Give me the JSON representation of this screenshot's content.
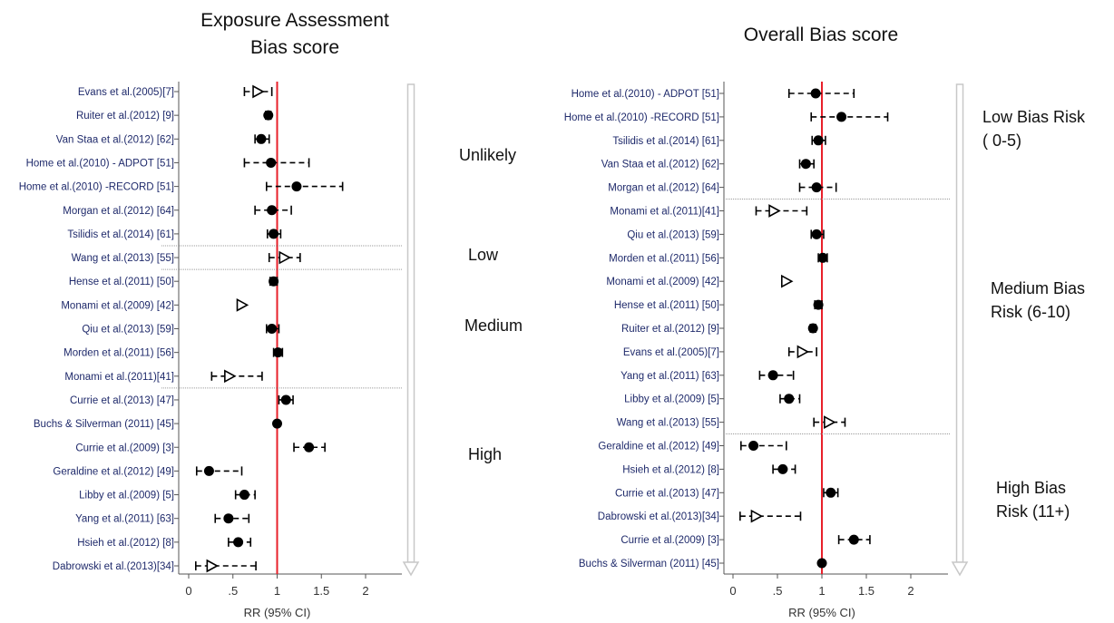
{
  "colors": {
    "reference_line": "#e8202a",
    "marker": "#000000",
    "axis": "#555555",
    "label": "#1f2a6b",
    "arrow": "#c8c8c8",
    "divider": "#9a9a9a"
  },
  "chart_data": [
    {
      "type": "forest",
      "title_lines": [
        "Exposure Assessment",
        "Bias score"
      ],
      "xlabel": "RR (95% CI)",
      "xlim": [
        0,
        2
      ],
      "x_ticks": [
        {
          "value": 0,
          "label": "0"
        },
        {
          "value": 0.5,
          "label": ".5"
        },
        {
          "value": 1,
          "label": "1"
        },
        {
          "value": 1.5,
          "label": "1.5"
        },
        {
          "value": 2,
          "label": "2"
        }
      ],
      "reference_line": 1,
      "group_breaks_after": [
        7,
        8,
        13
      ],
      "groups": [
        {
          "label": "Unlikely",
          "rows": [
            0,
            6
          ]
        },
        {
          "label": "Low",
          "rows": [
            7,
            7
          ]
        },
        {
          "label": "Medium",
          "rows": [
            8,
            12
          ]
        },
        {
          "label": "High",
          "rows": [
            13,
            20
          ]
        }
      ],
      "studies": [
        {
          "label": "Evans et al.(2005)[7]",
          "rr": 0.78,
          "lo": 0.63,
          "hi": 0.94,
          "marker": "triangle"
        },
        {
          "label": "Ruiter et al.(2012) [9]",
          "rr": 0.9,
          "lo": 0.87,
          "hi": 0.93,
          "marker": "circle"
        },
        {
          "label": "Van Staa et al.(2012) [62]",
          "rr": 0.82,
          "lo": 0.75,
          "hi": 0.91,
          "marker": "circle"
        },
        {
          "label": "Home et al.(2010) - ADPOT [51]",
          "rr": 0.93,
          "lo": 0.63,
          "hi": 1.36,
          "marker": "circle"
        },
        {
          "label": "Home et al.(2010) -RECORD [51]",
          "rr": 1.22,
          "lo": 0.88,
          "hi": 1.74,
          "marker": "circle"
        },
        {
          "label": "Morgan et al.(2012) [64]",
          "rr": 0.94,
          "lo": 0.75,
          "hi": 1.16,
          "marker": "circle"
        },
        {
          "label": "Tsilidis et al.(2014) [61]",
          "rr": 0.96,
          "lo": 0.89,
          "hi": 1.04,
          "marker": "circle"
        },
        {
          "label": "Wang et al.(2013) [55]",
          "rr": 1.08,
          "lo": 0.91,
          "hi": 1.26,
          "marker": "triangle"
        },
        {
          "label": "Hense et al.(2011) [50]",
          "rr": 0.96,
          "lo": 0.92,
          "hi": 1.0,
          "marker": "circle"
        },
        {
          "label": "Monami et al.(2009) [42]",
          "rr": 0.6,
          "lo": 0.6,
          "hi": 0.6,
          "marker": "triangle"
        },
        {
          "label": "Qiu et al.(2013) [59]",
          "rr": 0.94,
          "lo": 0.88,
          "hi": 1.02,
          "marker": "circle"
        },
        {
          "label": "Morden et al.(2011) [56]",
          "rr": 1.01,
          "lo": 0.96,
          "hi": 1.06,
          "marker": "circle"
        },
        {
          "label": "Monami et al.(2011)[41]",
          "rr": 0.46,
          "lo": 0.26,
          "hi": 0.83,
          "marker": "triangle"
        },
        {
          "label": "Currie et al.(2013) [47]",
          "rr": 1.1,
          "lo": 1.02,
          "hi": 1.18,
          "marker": "circle"
        },
        {
          "label": "Buchs & Silverman (2011) [45]",
          "rr": 1.0,
          "lo": 1.0,
          "hi": 1.0,
          "marker": "circle"
        },
        {
          "label": "Currie et al.(2009) [3]",
          "rr": 1.36,
          "lo": 1.19,
          "hi": 1.54,
          "marker": "circle"
        },
        {
          "label": "Geraldine et al.(2012) [49]",
          "rr": 0.23,
          "lo": 0.09,
          "hi": 0.6,
          "marker": "circle"
        },
        {
          "label": "Libby et al.(2009) [5]",
          "rr": 0.63,
          "lo": 0.53,
          "hi": 0.75,
          "marker": "circle"
        },
        {
          "label": "Yang et al.(2011) [63]",
          "rr": 0.45,
          "lo": 0.3,
          "hi": 0.68,
          "marker": "circle"
        },
        {
          "label": "Hsieh et al.(2012) [8]",
          "rr": 0.56,
          "lo": 0.45,
          "hi": 0.7,
          "marker": "circle"
        },
        {
          "label": "Dabrowski et al.(2013)[34]",
          "rr": 0.26,
          "lo": 0.08,
          "hi": 0.76,
          "marker": "triangle"
        }
      ]
    },
    {
      "type": "forest",
      "title_lines": [
        "Overall Bias score"
      ],
      "xlabel": "RR (95% CI)",
      "xlim": [
        0,
        2
      ],
      "x_ticks": [
        {
          "value": 0,
          "label": "0"
        },
        {
          "value": 0.5,
          "label": ".5"
        },
        {
          "value": 1,
          "label": "1"
        },
        {
          "value": 1.5,
          "label": "1.5"
        },
        {
          "value": 2,
          "label": "2"
        }
      ],
      "reference_line": 1,
      "group_breaks_after": [
        5,
        15
      ],
      "groups": [
        {
          "label": "Low Bias Risk\n( 0-5)",
          "rows": [
            0,
            4
          ]
        },
        {
          "label": "Medium Bias\nRisk (6-10)",
          "rows": [
            5,
            14
          ]
        },
        {
          "label": "High Bias\nRisk (11+)",
          "rows": [
            15,
            20
          ]
        }
      ],
      "studies": [
        {
          "label": "Home et al.(2010) - ADPOT [51]",
          "rr": 0.93,
          "lo": 0.63,
          "hi": 1.36,
          "marker": "circle"
        },
        {
          "label": "Home et al.(2010) -RECORD [51]",
          "rr": 1.22,
          "lo": 0.88,
          "hi": 1.74,
          "marker": "circle"
        },
        {
          "label": "Tsilidis et al.(2014) [61]",
          "rr": 0.96,
          "lo": 0.89,
          "hi": 1.04,
          "marker": "circle"
        },
        {
          "label": "Van Staa et al.(2012) [62]",
          "rr": 0.82,
          "lo": 0.75,
          "hi": 0.91,
          "marker": "circle"
        },
        {
          "label": "Morgan et al.(2012) [64]",
          "rr": 0.94,
          "lo": 0.75,
          "hi": 1.16,
          "marker": "circle"
        },
        {
          "label": "Monami et al.(2011)[41]",
          "rr": 0.46,
          "lo": 0.26,
          "hi": 0.83,
          "marker": "triangle"
        },
        {
          "label": "Qiu et al.(2013) [59]",
          "rr": 0.94,
          "lo": 0.88,
          "hi": 1.02,
          "marker": "circle"
        },
        {
          "label": "Morden et al.(2011) [56]",
          "rr": 1.01,
          "lo": 0.96,
          "hi": 1.06,
          "marker": "circle"
        },
        {
          "label": "Monami et al.(2009) [42]",
          "rr": 0.6,
          "lo": 0.6,
          "hi": 0.6,
          "marker": "triangle"
        },
        {
          "label": "Hense et al.(2011) [50]",
          "rr": 0.96,
          "lo": 0.92,
          "hi": 1.0,
          "marker": "circle"
        },
        {
          "label": "Ruiter et al.(2012) [9]",
          "rr": 0.9,
          "lo": 0.87,
          "hi": 0.93,
          "marker": "circle"
        },
        {
          "label": "Evans et al.(2005)[7]",
          "rr": 0.78,
          "lo": 0.63,
          "hi": 0.94,
          "marker": "triangle"
        },
        {
          "label": "Yang et al.(2011) [63]",
          "rr": 0.45,
          "lo": 0.3,
          "hi": 0.68,
          "marker": "circle"
        },
        {
          "label": "Libby et al.(2009) [5]",
          "rr": 0.63,
          "lo": 0.53,
          "hi": 0.75,
          "marker": "circle"
        },
        {
          "label": "Wang et al.(2013) [55]",
          "rr": 1.08,
          "lo": 0.91,
          "hi": 1.26,
          "marker": "triangle"
        },
        {
          "label": "Geraldine et al.(2012) [49]",
          "rr": 0.23,
          "lo": 0.09,
          "hi": 0.6,
          "marker": "circle"
        },
        {
          "label": "Hsieh et al.(2012) [8]",
          "rr": 0.56,
          "lo": 0.45,
          "hi": 0.7,
          "marker": "circle"
        },
        {
          "label": "Currie et al.(2013) [47]",
          "rr": 1.1,
          "lo": 1.02,
          "hi": 1.18,
          "marker": "circle"
        },
        {
          "label": "Dabrowski et al.(2013)[34]",
          "rr": 0.26,
          "lo": 0.08,
          "hi": 0.76,
          "marker": "triangle"
        },
        {
          "label": "Currie et al.(2009) [3]",
          "rr": 1.36,
          "lo": 1.19,
          "hi": 1.54,
          "marker": "circle"
        },
        {
          "label": "Buchs & Silverman (2011) [45]",
          "rr": 1.0,
          "lo": 1.0,
          "hi": 1.0,
          "marker": "circle"
        }
      ]
    }
  ]
}
